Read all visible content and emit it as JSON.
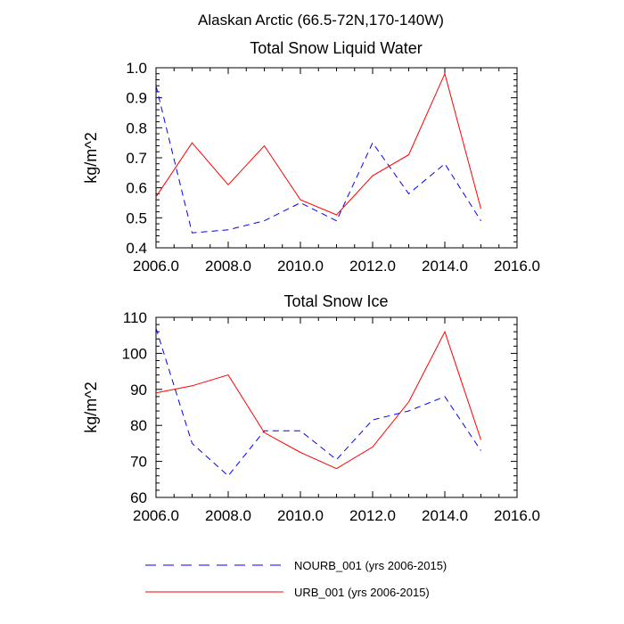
{
  "figure": {
    "title": "Alaskan Arctic (66.5-72N,170-140W)"
  },
  "colors": {
    "nourb": "#0000ff",
    "urb": "#ff0000",
    "axis": "#000000"
  },
  "legend": {
    "items": [
      {
        "label": "NOURB_001 (yrs 2006-2015)",
        "style": "dashed",
        "color_key": "nourb"
      },
      {
        "label": "URB_001 (yrs 2006-2015)",
        "style": "solid",
        "color_key": "urb"
      }
    ]
  },
  "chart_data": [
    {
      "type": "line",
      "title": "Total Snow Liquid Water",
      "xlabel": "",
      "ylabel": "kg/m^2",
      "xlim": [
        2006,
        2016
      ],
      "ylim": [
        0.4,
        1.0
      ],
      "xticks": [
        2006,
        2008,
        2010,
        2012,
        2014,
        2016
      ],
      "xtick_labels": [
        "2006.0",
        "2008.0",
        "2010.0",
        "2012.0",
        "2014.0",
        "2016.0"
      ],
      "yticks": [
        0.4,
        0.5,
        0.6,
        0.7,
        0.8,
        0.9,
        1.0
      ],
      "ytick_labels": [
        "0.4",
        "0.5",
        "0.6",
        "0.7",
        "0.8",
        "0.9",
        "1.0"
      ],
      "x": [
        2006,
        2007,
        2008,
        2009,
        2010,
        2011,
        2012,
        2013,
        2014,
        2015
      ],
      "series": [
        {
          "name": "NOURB_001 (yrs 2006-2015)",
          "style": "dashed",
          "color_key": "nourb",
          "values": [
            0.94,
            0.45,
            0.46,
            0.49,
            0.55,
            0.49,
            0.75,
            0.58,
            0.68,
            0.49
          ]
        },
        {
          "name": "URB_001 (yrs 2006-2015)",
          "style": "solid",
          "color_key": "urb",
          "values": [
            0.57,
            0.75,
            0.61,
            0.74,
            0.56,
            0.51,
            0.64,
            0.71,
            0.98,
            0.53
          ]
        }
      ]
    },
    {
      "type": "line",
      "title": "Total Snow Ice",
      "xlabel": "",
      "ylabel": "kg/m^2",
      "xlim": [
        2006,
        2016
      ],
      "ylim": [
        60,
        110
      ],
      "xticks": [
        2006,
        2008,
        2010,
        2012,
        2014,
        2016
      ],
      "xtick_labels": [
        "2006.0",
        "2008.0",
        "2010.0",
        "2012.0",
        "2014.0",
        "2016.0"
      ],
      "yticks": [
        60,
        70,
        80,
        90,
        100,
        110
      ],
      "ytick_labels": [
        "60",
        "70",
        "80",
        "90",
        "100",
        "110"
      ],
      "x": [
        2006,
        2007,
        2008,
        2009,
        2010,
        2011,
        2012,
        2013,
        2014,
        2015
      ],
      "series": [
        {
          "name": "NOURB_001 (yrs 2006-2015)",
          "style": "dashed",
          "color_key": "nourb",
          "values": [
            107,
            75,
            66,
            78.5,
            78.5,
            70.5,
            81.5,
            84,
            88,
            73
          ]
        },
        {
          "name": "URB_001 (yrs 2006-2015)",
          "style": "solid",
          "color_key": "urb",
          "values": [
            89,
            91,
            94,
            78,
            72.5,
            68,
            74,
            86.5,
            106,
            76
          ]
        }
      ]
    }
  ]
}
